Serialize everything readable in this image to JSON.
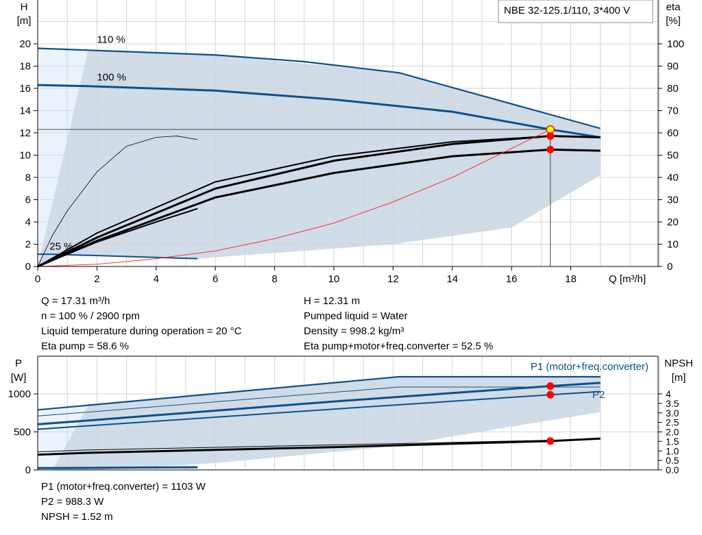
{
  "chart_data": [
    {
      "type": "line",
      "title": "NBE 32-125.1/110, 3*400 V",
      "xlabel": "Q [m³/h]",
      "ylabel": "H\n[m]",
      "y2label": "eta\n[%]",
      "xlim": [
        0,
        21
      ],
      "ylim": [
        0,
        24
      ],
      "y2lim": [
        0,
        120
      ],
      "xticks": [
        0,
        2,
        4,
        6,
        8,
        10,
        12,
        14,
        16,
        18
      ],
      "yticks": [
        0,
        2,
        4,
        6,
        8,
        10,
        12,
        14,
        16,
        18,
        20
      ],
      "y2ticks": [
        0,
        10,
        20,
        30,
        40,
        50,
        60,
        70,
        80,
        90,
        100
      ],
      "grid": true,
      "curve_labels": [
        {
          "text": "110 %",
          "x": 2,
          "y": 20.1
        },
        {
          "text": "100 %",
          "x": 2,
          "y": 16.7
        },
        {
          "text": "25 %",
          "x": 0.4,
          "y": 1.5
        }
      ],
      "region_light": [
        [
          0,
          19.6
        ],
        [
          1.7,
          19.4
        ],
        [
          1.2,
          12
        ],
        [
          0.6,
          4
        ],
        [
          0,
          0
        ]
      ],
      "region": [
        [
          0,
          0
        ],
        [
          1.7,
          19.4
        ],
        [
          6,
          19.0
        ],
        [
          12.2,
          17.4
        ],
        [
          19,
          12.4
        ],
        [
          19,
          8.2
        ],
        [
          16,
          3.5
        ],
        [
          12,
          2.0
        ],
        [
          5.4,
          0.7
        ],
        [
          0.8,
          1.0
        ]
      ],
      "series": [
        {
          "id": "h-110",
          "axis": "H",
          "color": "#0b4f8a",
          "width": 2.2,
          "points": [
            [
              0,
              19.6
            ],
            [
              2,
              19.4
            ],
            [
              6,
              19.0
            ],
            [
              9,
              18.4
            ],
            [
              12.2,
              17.4
            ],
            [
              19,
              12.4
            ]
          ]
        },
        {
          "id": "h-100",
          "axis": "H",
          "color": "#0b4f8a",
          "width": 3,
          "points": [
            [
              0,
              16.3
            ],
            [
              1.7,
              16.2
            ],
            [
              6,
              15.8
            ],
            [
              10,
              15.0
            ],
            [
              14,
              13.9
            ],
            [
              17.31,
              12.31
            ],
            [
              19,
              11.6
            ]
          ]
        },
        {
          "id": "h-25",
          "axis": "H",
          "color": "#0b4f8a",
          "width": 2,
          "points": [
            [
              0,
              1.1
            ],
            [
              0.5,
              1.1
            ],
            [
              5.4,
              0.7
            ]
          ]
        },
        {
          "id": "eta-pump-25",
          "axis": "eta",
          "color": "#000",
          "width": 0.8,
          "points": [
            [
              0,
              0
            ],
            [
              0.5,
              14
            ],
            [
              1,
              25
            ],
            [
              2,
              42.5
            ],
            [
              3,
              54
            ],
            [
              4,
              58
            ],
            [
              4.7,
              58.6
            ],
            [
              5.4,
              57
            ]
          ]
        },
        {
          "id": "eta-pump-110",
          "axis": "eta",
          "color": "#000",
          "width": 2,
          "points": [
            [
              0,
              0
            ],
            [
              2,
              15
            ],
            [
              6,
              38
            ],
            [
              10,
              49.5
            ],
            [
              14,
              56
            ],
            [
              17.3,
              58.5
            ],
            [
              19,
              58
            ]
          ]
        },
        {
          "id": "eta-pump-100",
          "axis": "eta",
          "color": "#000",
          "width": 3,
          "points": [
            [
              0,
              0
            ],
            [
              2,
              13
            ],
            [
              6,
              35
            ],
            [
              10,
              47.5
            ],
            [
              14,
              55
            ],
            [
              17.31,
              58.6
            ],
            [
              19,
              58
            ]
          ]
        },
        {
          "id": "eta-total-100",
          "axis": "eta",
          "color": "#000",
          "width": 3,
          "points": [
            [
              0,
              0
            ],
            [
              2,
              11.5
            ],
            [
              6,
              31
            ],
            [
              10,
              42
            ],
            [
              14,
              49.5
            ],
            [
              17.31,
              52.5
            ],
            [
              19,
              52
            ]
          ]
        },
        {
          "id": "eta-total-25",
          "axis": "eta",
          "color": "#000",
          "width": 2,
          "points": [
            [
              0,
              0
            ],
            [
              2,
              11
            ],
            [
              4,
              20
            ],
            [
              5.4,
              26
            ]
          ]
        },
        {
          "id": "system-curve",
          "axis": "H",
          "color": "#ff3030",
          "width": 1,
          "points": [
            [
              0,
              0
            ],
            [
              2,
              0.2
            ],
            [
              4,
              0.7
            ],
            [
              6,
              1.4
            ],
            [
              8,
              2.5
            ],
            [
              10,
              3.9
            ],
            [
              12,
              5.8
            ],
            [
              14,
              8.0
            ],
            [
              16,
              10.6
            ],
            [
              17.31,
              12.31
            ]
          ]
        }
      ],
      "duty_points": [
        {
          "axis": "H",
          "x": 17.31,
          "y": 12.31,
          "color": "#ffff00"
        },
        {
          "axis": "eta",
          "x": 17.31,
          "y": 58.6,
          "color": "#ff0000"
        },
        {
          "axis": "eta",
          "x": 17.31,
          "y": 52.5,
          "color": "#ff0000"
        }
      ]
    },
    {
      "type": "line",
      "ylabel": "P\n[W]",
      "y2label": "NPSH\n[m]",
      "xlim": [
        0,
        21
      ],
      "ylim": [
        0,
        1500
      ],
      "y2lim": [
        0,
        6
      ],
      "yticks": [
        0,
        500,
        1000
      ],
      "y2ticks": [
        "0.0",
        "0.5",
        "1.0",
        "1.5",
        "2.0",
        "2.5",
        "3.0",
        "3.5",
        "4"
      ],
      "grid": true,
      "curve_labels": [
        {
          "text": "P1 (motor+freq.converter)"
        },
        {
          "text": "P2"
        }
      ],
      "region_light": [
        [
          0,
          800
        ],
        [
          1.7,
          850
        ],
        [
          1.2,
          300
        ],
        [
          0.5,
          20
        ],
        [
          0,
          0
        ]
      ],
      "region": [
        [
          0.5,
          0
        ],
        [
          1.7,
          850
        ],
        [
          12.2,
          1220
        ],
        [
          19,
          1220
        ],
        [
          19,
          760
        ],
        [
          16,
          570
        ],
        [
          12,
          310
        ],
        [
          6,
          90
        ],
        [
          2,
          0
        ]
      ],
      "series": [
        {
          "id": "p1-110",
          "axis": "P",
          "color": "#0b4f8a",
          "width": 2.2,
          "points": [
            [
              0,
              790
            ],
            [
              1.7,
              850
            ],
            [
              12.2,
              1225
            ],
            [
              19,
              1225
            ]
          ]
        },
        {
          "id": "p2-110",
          "axis": "P",
          "color": "#0b4f8a",
          "width": 1,
          "points": [
            [
              0,
              710
            ],
            [
              1.7,
              760
            ],
            [
              12.2,
              1090
            ],
            [
              19,
              1090
            ]
          ]
        },
        {
          "id": "p1-100",
          "axis": "P",
          "color": "#0b4f8a",
          "width": 3,
          "points": [
            [
              0,
              600
            ],
            [
              1.7,
              650
            ],
            [
              10,
              900
            ],
            [
              17.31,
              1103
            ],
            [
              19,
              1145
            ]
          ]
        },
        {
          "id": "p2-100",
          "axis": "P",
          "color": "#0b4f8a",
          "width": 2,
          "points": [
            [
              0,
              535
            ],
            [
              1.7,
              580
            ],
            [
              10,
              800
            ],
            [
              17.31,
              988.3
            ],
            [
              19,
              1030
            ]
          ]
        },
        {
          "id": "p-25",
          "axis": "P",
          "color": "#0b4f8a",
          "width": 3,
          "points": [
            [
              0,
              25
            ],
            [
              0.5,
              25
            ],
            [
              5.4,
              35
            ]
          ]
        },
        {
          "id": "npsh-110",
          "axis": "NPSH",
          "color": "#000",
          "width": 1,
          "points": [
            [
              0,
              0.95
            ],
            [
              1.7,
              1.05
            ],
            [
              12,
              1.38
            ],
            [
              19,
              1.62
            ]
          ]
        },
        {
          "id": "npsh-100",
          "axis": "NPSH",
          "color": "#000",
          "width": 3,
          "points": [
            [
              0,
              0.8
            ],
            [
              1.7,
              0.9
            ],
            [
              10,
              1.2
            ],
            [
              17.31,
              1.52
            ],
            [
              19,
              1.65
            ]
          ]
        }
      ],
      "duty_points": [
        {
          "axis": "P",
          "x": 17.31,
          "y": 1103,
          "color": "#ff0000"
        },
        {
          "axis": "P",
          "x": 17.31,
          "y": 988.3,
          "color": "#ff0000"
        },
        {
          "axis": "NPSH",
          "x": 17.31,
          "y": 1.52,
          "color": "#ff0000"
        }
      ]
    }
  ],
  "info_top": {
    "q": "Q = 17.31 m³/h",
    "n": "n = 100 % / 2900 rpm",
    "temp": "Liquid temperature during operation = 20 °C",
    "eta_pump": "Eta pump = 58.6 %",
    "h": "H = 12.31 m",
    "liquid": "Pumped liquid = Water",
    "density": "Density = 998.2 kg/m³",
    "eta_total": "Eta pump+motor+freq.converter = 52.5 %"
  },
  "info_bottom": {
    "p1": "P1 (motor+freq.converter) = 1103 W",
    "p2": "P2 = 988.3 W",
    "npsh": "NPSH = 1.52 m"
  }
}
